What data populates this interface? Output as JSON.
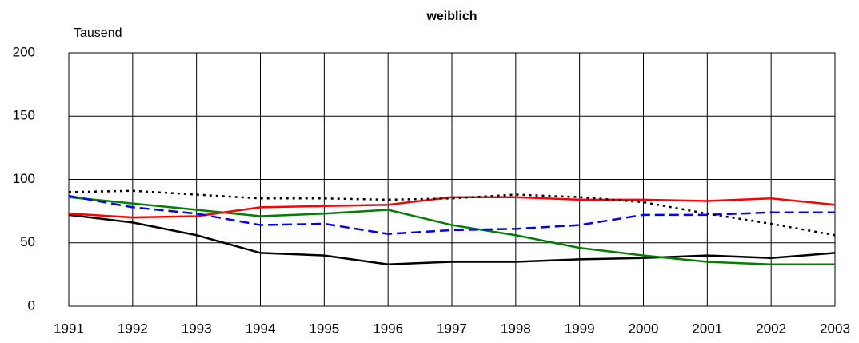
{
  "chart_data": {
    "type": "line",
    "title": "weiblich",
    "y_label": "Tausend",
    "x": [
      1991,
      1992,
      1993,
      1994,
      1995,
      1996,
      1997,
      1998,
      1999,
      2000,
      2001,
      2002,
      2003
    ],
    "xlim": [
      1991,
      2003
    ],
    "xticks": [
      1991,
      1992,
      1993,
      1994,
      1995,
      1996,
      1997,
      1998,
      1999,
      2000,
      2001,
      2002,
      2003
    ],
    "ylim": [
      0,
      200
    ],
    "yticks": [
      0,
      50,
      100,
      150,
      200
    ],
    "grid": true,
    "series": [
      {
        "color": "#000000",
        "dash": "solid",
        "values": [
          72,
          66,
          56,
          42,
          40,
          33,
          35,
          35,
          37,
          38,
          40,
          38,
          42
        ]
      },
      {
        "color": "#008000",
        "dash": "solid",
        "values": [
          86,
          81,
          76,
          71,
          73,
          76,
          64,
          56,
          46,
          40,
          35,
          33,
          33
        ]
      },
      {
        "color": "#ff0000",
        "dash": "solid",
        "values": [
          73,
          70,
          71,
          78,
          79,
          80,
          86,
          86,
          84,
          84,
          83,
          85,
          80
        ]
      },
      {
        "color": "#0000ff",
        "dash": "dashed",
        "values": [
          87,
          78,
          73,
          64,
          65,
          57,
          60,
          61,
          64,
          72,
          72,
          74,
          74
        ]
      },
      {
        "color": "#000000",
        "dash": "dotted",
        "values": [
          90,
          91,
          88,
          85,
          85,
          84,
          85,
          88,
          86,
          82,
          73,
          65,
          56
        ]
      }
    ]
  }
}
